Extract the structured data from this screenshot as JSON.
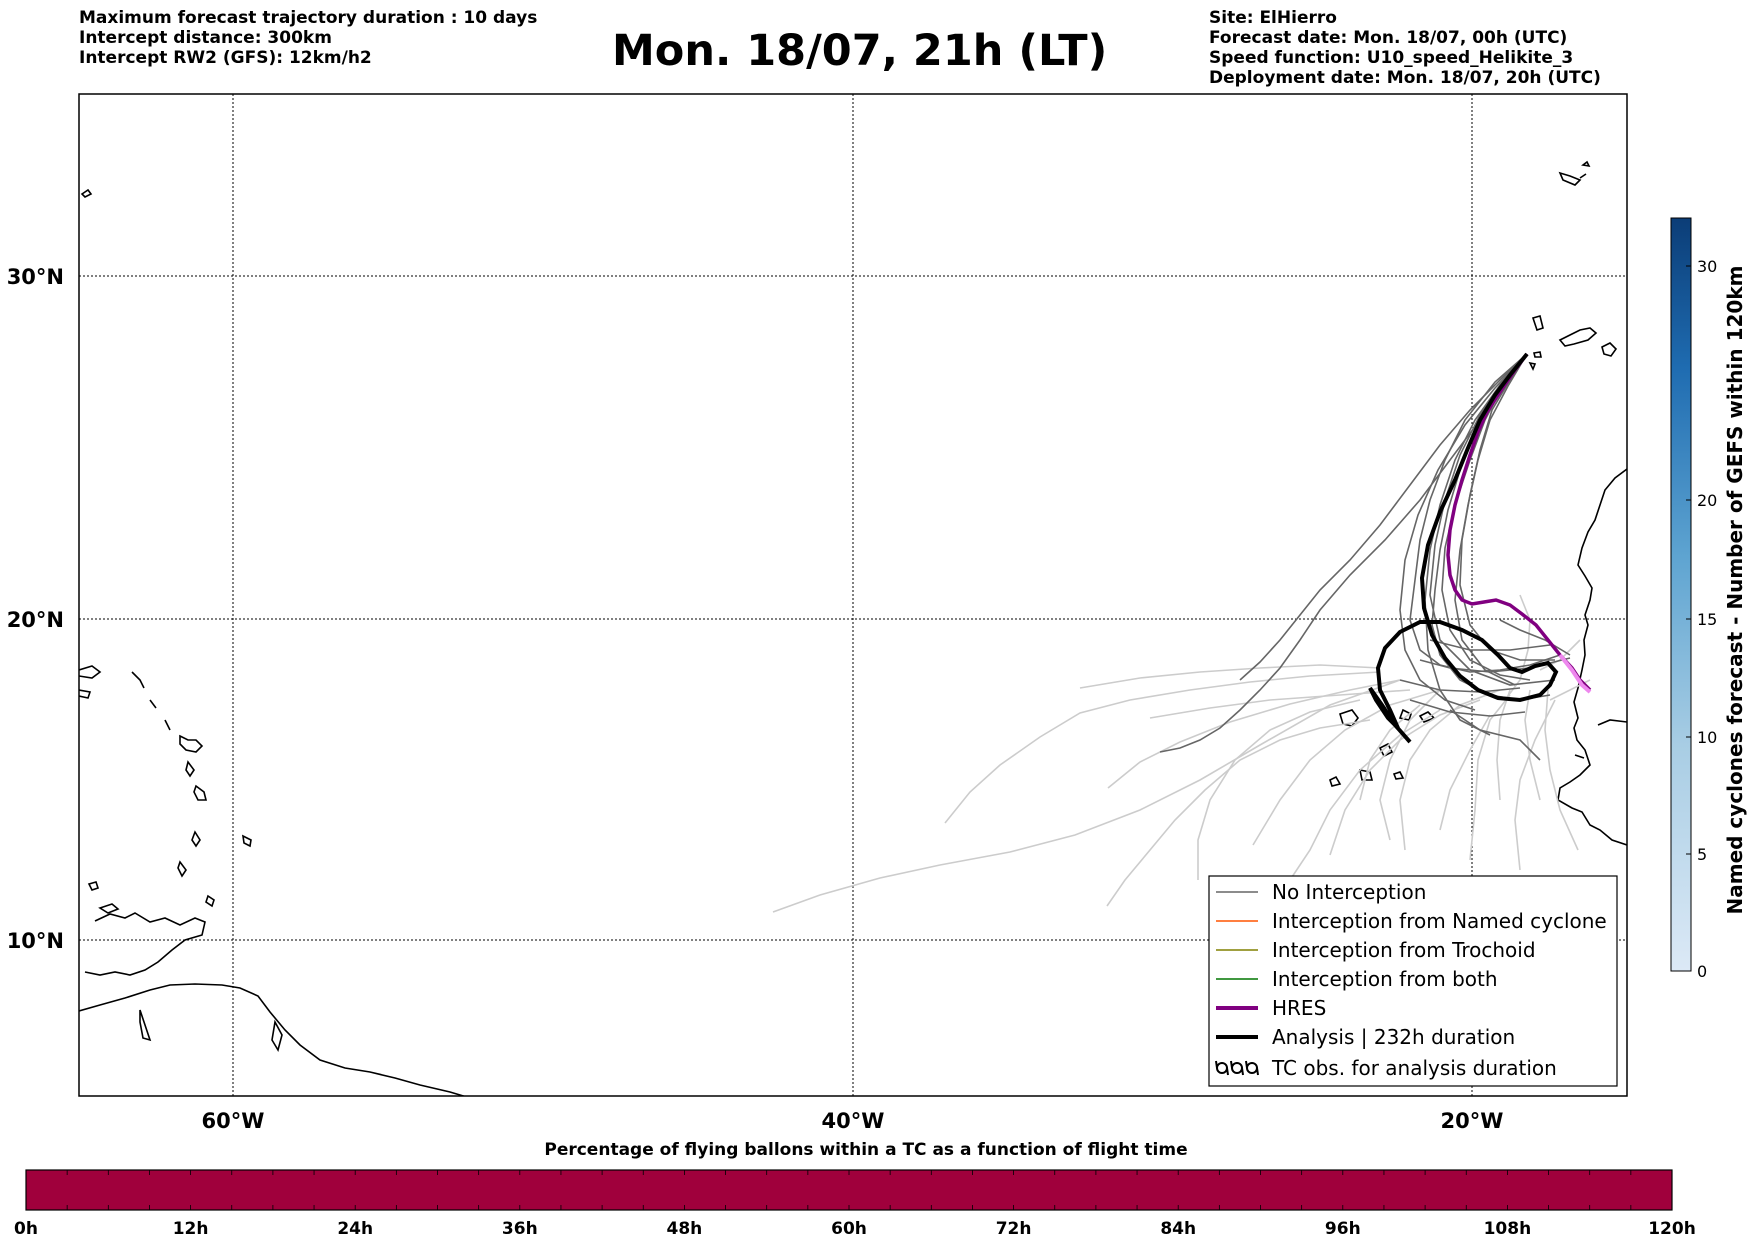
{
  "header": {
    "title": "Mon. 18/07, 21h (LT)",
    "left_lines": [
      "Maximum forecast trajectory duration : 10 days",
      "Intercept distance: 300km",
      "Intercept RW2 (GFS):  12km/h2"
    ],
    "right_lines": [
      "Site: ElHierro",
      "Forecast date: Mon. 18/07, 00h (UTC)",
      "Speed function: U10_speed_Helikite_3",
      "Deployment date: Mon. 18/07, 20h (UTC)"
    ]
  },
  "map": {
    "lon_labels": [
      "60°W",
      "40°W",
      "20°W"
    ],
    "lat_labels": [
      "30°N",
      "20°N",
      "10°N"
    ],
    "gridlines": true
  },
  "legend": {
    "items": [
      {
        "label": "No Interception",
        "color": "#666666",
        "style": "thin"
      },
      {
        "label": "Interception from Named cyclone",
        "color": "#ff5500",
        "style": "thin"
      },
      {
        "label": "Interception from Trochoid",
        "color": "#808000",
        "style": "thin"
      },
      {
        "label": "Interception from both",
        "color": "#007700",
        "style": "thin"
      },
      {
        "label": "HRES",
        "color": "#800080",
        "style": "thick"
      },
      {
        "label": "Analysis | 232h duration",
        "color": "#000000",
        "style": "thick"
      },
      {
        "label": "TC obs. for analysis duration",
        "color": "#000000",
        "style": "symbol"
      }
    ],
    "symbol_icon": "cyclone-symbols-icon"
  },
  "colorbar": {
    "label": "Named cyclones forecast - Number of GEFS within 120km",
    "ticks": [
      "0",
      "5",
      "10",
      "15",
      "20",
      "30"
    ]
  },
  "timebar": {
    "title": "Percentage of flying ballons within a TC as a function of flight time",
    "ticks": [
      "0h",
      "12h",
      "24h",
      "36h",
      "48h",
      "60h",
      "72h",
      "84h",
      "96h",
      "108h",
      "120h"
    ],
    "fill_color": "#a0003c"
  }
}
